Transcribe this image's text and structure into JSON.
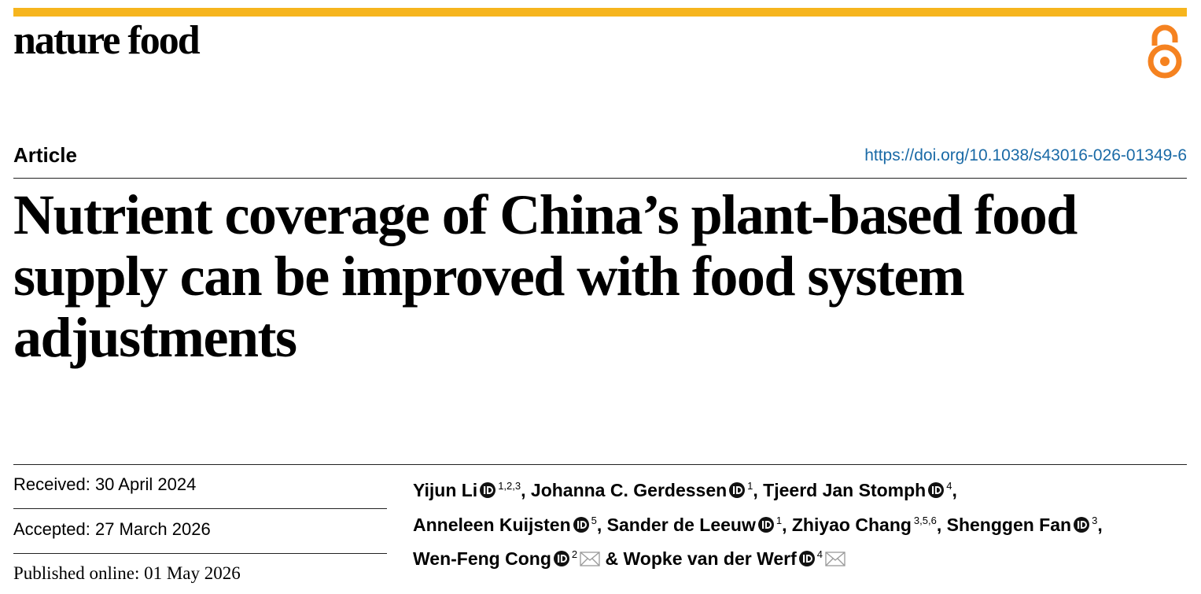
{
  "header": {
    "journal": "nature food",
    "article_type": "Article",
    "doi": "https://doi.org/10.1038/s43016-026-01349-6"
  },
  "title": "Nutrient coverage of China’s plant-based food supply can be improved with food system adjustments",
  "dates": [
    "Received: 30 April 2024",
    "Accepted: 27 March 2026",
    "Published online: 01 May 2026"
  ],
  "authors": [
    {
      "name": "Yijun Li",
      "orcid": true,
      "affiliations": "1,2,3",
      "separator": ", "
    },
    {
      "name": "Johanna C. Gerdessen",
      "orcid": true,
      "affiliations": "1",
      "separator": ", "
    },
    {
      "name": "Tjeerd Jan Stomph",
      "orcid": true,
      "affiliations": "4",
      "separator": ","
    },
    {
      "name": "Anneleen Kuijsten",
      "orcid": true,
      "affiliations": "5",
      "separator": ", "
    },
    {
      "name": "Sander de Leeuw",
      "orcid": true,
      "affiliations": "1",
      "separator": ", "
    },
    {
      "name": "Zhiyao Chang",
      "orcid": false,
      "affiliations": "3,5,6",
      "separator": ", "
    },
    {
      "name": "Shenggen Fan",
      "orcid": true,
      "affiliations": "3",
      "separator": ","
    },
    {
      "name": "Wen-Feng Cong",
      "orcid": true,
      "affiliations": "2",
      "email": true,
      "separator": " & "
    },
    {
      "name": "Wopke van der Werf",
      "orcid": true,
      "affiliations": "4",
      "email": true
    }
  ]
}
